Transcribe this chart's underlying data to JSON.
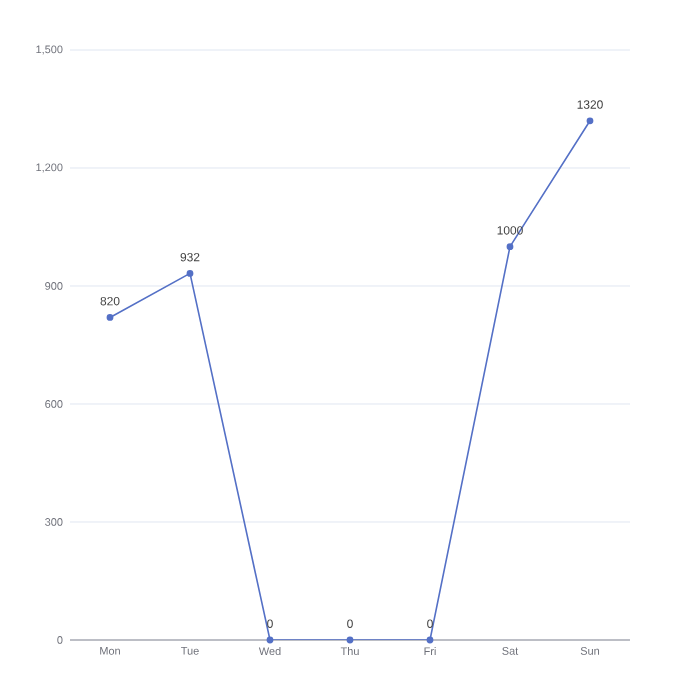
{
  "chart_data": {
    "type": "line",
    "categories": [
      "Mon",
      "Tue",
      "Wed",
      "Thu",
      "Fri",
      "Sat",
      "Sun"
    ],
    "series": [
      {
        "color": "#5470c6",
        "values": [
          820,
          932,
          0,
          0,
          0,
          1000,
          1320
        ]
      }
    ],
    "ylim": [
      0,
      1500
    ],
    "yticks": [
      0,
      300,
      600,
      900,
      {
        "value": 1200,
        "label": "1,200"
      },
      {
        "value": 1500,
        "label": "1,500"
      }
    ],
    "grid": "y",
    "marker": "circle",
    "line_style": "solid",
    "data_labels": true
  }
}
